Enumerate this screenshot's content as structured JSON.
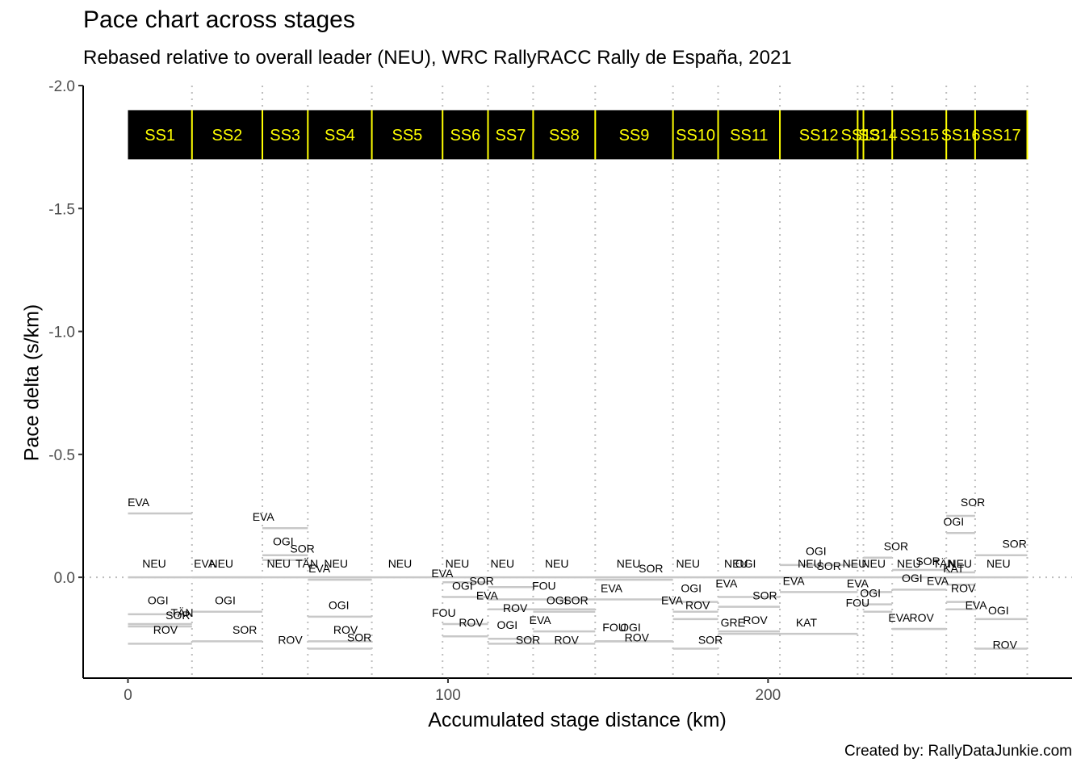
{
  "chart_data": {
    "type": "line",
    "title": "Pace chart across stages",
    "subtitle": "Rebased relative to overall leader (NEU), WRC RallyRACC Rally de España, 2021",
    "xlabel": "Accumulated stage distance (km)",
    "ylabel": "Pace delta (s/km)",
    "caption": "Created by: RallyDataJunkie.com",
    "xlim": [
      -14,
      295
    ],
    "ylim": [
      -2.0,
      0.41
    ],
    "y_reversed": true,
    "x_ticks": [
      0,
      100,
      200
    ],
    "y_ticks": [
      -2.0,
      -1.5,
      -1.0,
      -0.5,
      0.0
    ],
    "y_tick_labels": [
      "-2.0",
      "-1.5",
      "-1.0",
      "-0.5",
      "0.0"
    ],
    "reference_line_y": 0,
    "stages": [
      {
        "name": "SS1",
        "start": 0,
        "end": 20.0
      },
      {
        "name": "SS2",
        "start": 20.0,
        "end": 42.0
      },
      {
        "name": "SS3",
        "start": 42.0,
        "end": 56.2
      },
      {
        "name": "SS4",
        "start": 56.2,
        "end": 76.2
      },
      {
        "name": "SS5",
        "start": 76.2,
        "end": 98.3
      },
      {
        "name": "SS6",
        "start": 98.3,
        "end": 112.5
      },
      {
        "name": "SS7",
        "start": 112.5,
        "end": 126.6
      },
      {
        "name": "SS8",
        "start": 126.6,
        "end": 146.0
      },
      {
        "name": "SS9",
        "start": 146.0,
        "end": 170.3
      },
      {
        "name": "SS10",
        "start": 170.3,
        "end": 184.4
      },
      {
        "name": "SS11",
        "start": 184.4,
        "end": 203.7
      },
      {
        "name": "SS12",
        "start": 203.7,
        "end": 228.0
      },
      {
        "name": "SS13",
        "start": 228.0,
        "end": 229.8
      },
      {
        "name": "SS14",
        "start": 229.8,
        "end": 238.8
      },
      {
        "name": "SS15",
        "start": 238.8,
        "end": 255.7
      },
      {
        "name": "SS16",
        "start": 255.7,
        "end": 264.7
      },
      {
        "name": "SS17",
        "start": 264.7,
        "end": 281.0
      }
    ],
    "series": [
      {
        "stage": "SS1",
        "values": {
          "EVA": -0.26,
          "NEU": 0.0,
          "OGI": 0.15,
          "TÄN": 0.19,
          "SOR": 0.2,
          "ROV": 0.27
        }
      },
      {
        "stage": "SS2",
        "values": {
          "EVA": 0.0,
          "NEU": 0.0,
          "OGI": 0.14,
          "SOR": 0.26
        }
      },
      {
        "stage": "SS3",
        "values": {
          "EVA": -0.2,
          "OGI": -0.09,
          "SOR": -0.07,
          "NEU": 0.0
        }
      },
      {
        "stage": "SS4",
        "values": {
          "TÄN": 0.0,
          "NEU": 0.0,
          "EVA": 0.01,
          "OGI": 0.16,
          "ROV": 0.26,
          "SOR": 0.29
        }
      },
      {
        "stage": "SS5",
        "values": {
          "NEU": 0.0
        }
      },
      {
        "stage": "SS6",
        "values": {
          "NEU": 0.0,
          "EVA": 0.02,
          "OGI": 0.08,
          "FOU": 0.19,
          "ROV": 0.24
        }
      },
      {
        "stage": "SS7",
        "values": {
          "NEU": 0.0,
          "SOR": 0.04,
          "EVA": 0.09,
          "ROV": 0.13,
          "OGI": 0.25,
          "SOR2": 0.27
        }
      },
      {
        "stage": "SS8",
        "values": {
          "NEU": 0.0,
          "FOU": 0.09,
          "OGI": 0.13,
          "SOR": 0.14,
          "EVA": 0.22,
          "ROV": 0.27
        }
      },
      {
        "stage": "SS9",
        "values": {
          "NEU": 0.0,
          "SOR": 0.01,
          "EVA": 0.09,
          "FOU": 0.26,
          "OGI": 0.26,
          "ROV": 0.26
        }
      },
      {
        "stage": "SS10",
        "values": {
          "NEU": 0.0,
          "OGI": 0.1,
          "EVA": 0.14,
          "ROV": 0.17,
          "SOR": 0.29
        }
      },
      {
        "stage": "SS11",
        "values": {
          "NEU": 0.0,
          "OGI": 0.0,
          "EVA": 0.08,
          "SOR": 0.12,
          "ROV": 0.22,
          "GRE": 0.23
        }
      },
      {
        "stage": "SS12",
        "values": {
          "OGI": -0.05,
          "NEU": 0.0,
          "SOR": 0.0,
          "EVA": 0.06,
          "KAT": 0.23
        }
      },
      {
        "stage": "SS13",
        "values": {
          "NEU": 0.0
        }
      },
      {
        "stage": "SS14",
        "values": {
          "SOR": -0.08,
          "NEU": 0.0,
          "EVA": 0.06,
          "OGI": 0.11,
          "FOU": 0.14
        }
      },
      {
        "stage": "SS15",
        "values": {
          "SOR": -0.03,
          "NEU": 0.0,
          "OGI": 0.05,
          "EVA": 0.21,
          "ROV": 0.21
        }
      },
      {
        "stage": "SS16",
        "values": {
          "SOR": -0.25,
          "OGI": -0.18,
          "TÄN": -0.02,
          "KAT": 0.0,
          "NEU": 0.0,
          "EVA": 0.03,
          "ROV": 0.1,
          "EVA2": 0.13
        }
      },
      {
        "stage": "SS17",
        "values": {
          "SOR": -0.09,
          "NEU": 0.0,
          "OGI": 0.17,
          "ROV": 0.29
        }
      }
    ],
    "point_labels": [
      {
        "text": "EVA",
        "x": 3.3,
        "y": -0.29
      },
      {
        "text": "NEU",
        "x": 8.2,
        "y": -0.04
      },
      {
        "text": "OGI",
        "x": 9.4,
        "y": 0.11
      },
      {
        "text": "TÄN",
        "x": 16.9,
        "y": 0.16
      },
      {
        "text": "SOR",
        "x": 15.6,
        "y": 0.17
      },
      {
        "text": "ROV",
        "x": 11.7,
        "y": 0.23
      },
      {
        "text": "EVA",
        "x": 24.0,
        "y": -0.04
      },
      {
        "text": "NEU",
        "x": 29.2,
        "y": -0.04
      },
      {
        "text": "OGI",
        "x": 30.4,
        "y": 0.11
      },
      {
        "text": "SOR",
        "x": 36.5,
        "y": 0.23
      },
      {
        "text": "EVA",
        "x": 42.3,
        "y": -0.23
      },
      {
        "text": "OGI",
        "x": 48.5,
        "y": -0.13
      },
      {
        "text": "SOR",
        "x": 54.5,
        "y": -0.1
      },
      {
        "text": "NEU",
        "x": 47.1,
        "y": -0.04
      },
      {
        "text": "TÄN",
        "x": 55.9,
        "y": -0.04
      },
      {
        "text": "NEU",
        "x": 65.0,
        "y": -0.04
      },
      {
        "text": "EVA",
        "x": 59.8,
        "y": -0.02
      },
      {
        "text": "OGI",
        "x": 65.9,
        "y": 0.13
      },
      {
        "text": "ROV",
        "x": 68.0,
        "y": 0.23
      },
      {
        "text": "ROV",
        "x": 50.7,
        "y": 0.27
      },
      {
        "text": "SOR",
        "x": 72.3,
        "y": 0.26
      },
      {
        "text": "NEU",
        "x": 85.0,
        "y": -0.04
      },
      {
        "text": "NEU",
        "x": 102.9,
        "y": -0.04
      },
      {
        "text": "EVA",
        "x": 98.2,
        "y": 0.0
      },
      {
        "text": "OGI",
        "x": 104.5,
        "y": 0.05
      },
      {
        "text": "SOR",
        "x": 110.5,
        "y": 0.03
      },
      {
        "text": "EVA",
        "x": 112.2,
        "y": 0.09
      },
      {
        "text": "FOU",
        "x": 98.7,
        "y": 0.16
      },
      {
        "text": "ROV",
        "x": 107.2,
        "y": 0.2
      },
      {
        "text": "NEU",
        "x": 117.0,
        "y": -0.04
      },
      {
        "text": "ROV",
        "x": 121.0,
        "y": 0.14
      },
      {
        "text": "OGI",
        "x": 118.5,
        "y": 0.21
      },
      {
        "text": "SOR",
        "x": 125.0,
        "y": 0.27
      },
      {
        "text": "NEU",
        "x": 134.0,
        "y": -0.04
      },
      {
        "text": "FOU",
        "x": 130.0,
        "y": 0.05
      },
      {
        "text": "OGI",
        "x": 134.0,
        "y": 0.11
      },
      {
        "text": "SOR",
        "x": 140.0,
        "y": 0.11
      },
      {
        "text": "EVA",
        "x": 128.8,
        "y": 0.19
      },
      {
        "text": "ROV",
        "x": 137.0,
        "y": 0.27
      },
      {
        "text": "NEU",
        "x": 156.4,
        "y": -0.04
      },
      {
        "text": "SOR",
        "x": 163.4,
        "y": -0.02
      },
      {
        "text": "EVA",
        "x": 151.1,
        "y": 0.06
      },
      {
        "text": "FOU",
        "x": 152.0,
        "y": 0.22
      },
      {
        "text": "OGI",
        "x": 157.0,
        "y": 0.22
      },
      {
        "text": "ROV",
        "x": 159.0,
        "y": 0.26
      },
      {
        "text": "NEU",
        "x": 175.0,
        "y": -0.04
      },
      {
        "text": "OGI",
        "x": 176.0,
        "y": 0.06
      },
      {
        "text": "EVA",
        "x": 170.0,
        "y": 0.11
      },
      {
        "text": "ROV",
        "x": 178.0,
        "y": 0.13
      },
      {
        "text": "SOR",
        "x": 182.0,
        "y": 0.27
      },
      {
        "text": "NEU",
        "x": 190.0,
        "y": -0.04
      },
      {
        "text": "OGI",
        "x": 193.0,
        "y": -0.04
      },
      {
        "text": "EVA",
        "x": 187.0,
        "y": 0.04
      },
      {
        "text": "SOR",
        "x": 199.0,
        "y": 0.09
      },
      {
        "text": "ROV",
        "x": 196.0,
        "y": 0.19
      },
      {
        "text": "GRE",
        "x": 189.0,
        "y": 0.2
      },
      {
        "text": "OGI",
        "x": 215.0,
        "y": -0.09
      },
      {
        "text": "NEU",
        "x": 213.0,
        "y": -0.04
      },
      {
        "text": "SOR",
        "x": 219.0,
        "y": -0.03
      },
      {
        "text": "EVA",
        "x": 208.0,
        "y": 0.03
      },
      {
        "text": "KAT",
        "x": 212.0,
        "y": 0.2
      },
      {
        "text": "NEU",
        "x": 227.0,
        "y": -0.04
      },
      {
        "text": "NEU",
        "x": 233.0,
        "y": -0.04
      },
      {
        "text": "SOR",
        "x": 240.0,
        "y": -0.11
      },
      {
        "text": "EVA",
        "x": 228.0,
        "y": 0.04
      },
      {
        "text": "OGI",
        "x": 232.0,
        "y": 0.08
      },
      {
        "text": "FOU",
        "x": 228.0,
        "y": 0.12
      },
      {
        "text": "NEU",
        "x": 244.0,
        "y": -0.04
      },
      {
        "text": "SOR",
        "x": 250.0,
        "y": -0.05
      },
      {
        "text": "OGI",
        "x": 245.0,
        "y": 0.02
      },
      {
        "text": "EVA",
        "x": 241.0,
        "y": 0.18
      },
      {
        "text": "ROV",
        "x": 248.0,
        "y": 0.18
      },
      {
        "text": "SOR",
        "x": 264.0,
        "y": -0.29
      },
      {
        "text": "OGI",
        "x": 258.0,
        "y": -0.21
      },
      {
        "text": "TÄN",
        "x": 255.0,
        "y": -0.04
      },
      {
        "text": "KAT",
        "x": 258.0,
        "y": -0.02
      },
      {
        "text": "NEU",
        "x": 260.0,
        "y": -0.04
      },
      {
        "text": "EVA",
        "x": 253.0,
        "y": 0.03
      },
      {
        "text": "ROV",
        "x": 261.0,
        "y": 0.06
      },
      {
        "text": "EVA",
        "x": 265.0,
        "y": 0.13
      },
      {
        "text": "SOR",
        "x": 277.0,
        "y": -0.12
      },
      {
        "text": "NEU",
        "x": 272.0,
        "y": -0.04
      },
      {
        "text": "OGI",
        "x": 272.0,
        "y": 0.15
      },
      {
        "text": "ROV",
        "x": 274.0,
        "y": 0.29
      }
    ]
  }
}
